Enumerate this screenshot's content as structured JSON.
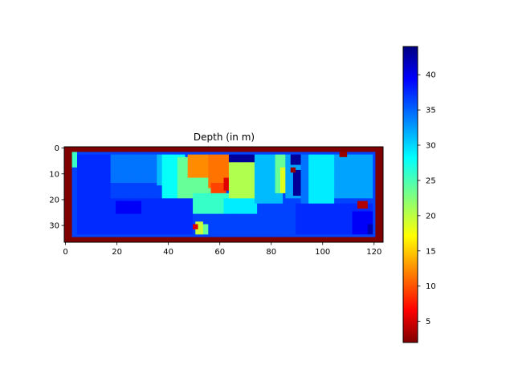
{
  "chart_data": {
    "type": "heatmap",
    "title": "Depth (in m)",
    "xlabel": "",
    "ylabel": "",
    "colormap": "jet",
    "image_size": [
      124,
      37
    ],
    "xlim": [
      -0.5,
      123.5
    ],
    "ylim": [
      36.5,
      -0.5
    ],
    "x_ticks": [
      0,
      20,
      40,
      60,
      80,
      100,
      120
    ],
    "y_ticks": [
      0,
      10,
      20,
      30
    ],
    "colorbar": {
      "range": [
        2,
        44
      ],
      "ticks": [
        5,
        10,
        15,
        20,
        25,
        30,
        35,
        40
      ]
    },
    "border_value": 44,
    "base_value": 10,
    "regions": [
      {
        "shape": "rect",
        "x": [
          3,
          5
        ],
        "y": [
          2,
          8
        ],
        "value": 20
      },
      {
        "shape": "rect",
        "x": [
          5,
          18
        ],
        "y": [
          3,
          20
        ],
        "value": 9
      },
      {
        "shape": "rect",
        "x": [
          18,
          36
        ],
        "y": [
          3,
          14
        ],
        "value": 12
      },
      {
        "shape": "rect",
        "x": [
          36,
          45
        ],
        "y": [
          3,
          15
        ],
        "value": 15
      },
      {
        "shape": "rect",
        "x": [
          38,
          47
        ],
        "y": [
          3,
          20
        ],
        "value": 18
      },
      {
        "shape": "rect",
        "x": [
          44,
          58
        ],
        "y": [
          4,
          20
        ],
        "value": 22
      },
      {
        "shape": "rect",
        "x": [
          48,
          58
        ],
        "y": [
          3,
          12
        ],
        "value": 33
      },
      {
        "shape": "rect",
        "x": [
          56,
          64
        ],
        "y": [
          3,
          16
        ],
        "value": 34
      },
      {
        "shape": "rect",
        "x": [
          57,
          63
        ],
        "y": [
          14,
          19
        ],
        "value": 36
      },
      {
        "shape": "rect",
        "x": [
          62,
          67
        ],
        "y": [
          12,
          17
        ],
        "value": 40
      },
      {
        "shape": "rect",
        "x": [
          64,
          74
        ],
        "y": [
          6,
          20
        ],
        "value": 25
      },
      {
        "shape": "rect",
        "x": [
          50,
          64
        ],
        "y": [
          18,
          26
        ],
        "value": 20
      },
      {
        "shape": "rect",
        "x": [
          62,
          75
        ],
        "y": [
          20,
          26
        ],
        "value": 17
      },
      {
        "shape": "rect",
        "x": [
          64,
          74
        ],
        "y": [
          3,
          6
        ],
        "value": 3
      },
      {
        "shape": "rect",
        "x": [
          74,
          85
        ],
        "y": [
          3,
          22
        ],
        "value": 15
      },
      {
        "shape": "rect",
        "x": [
          82,
          87
        ],
        "y": [
          3,
          18
        ],
        "value": 22
      },
      {
        "shape": "rect",
        "x": [
          84,
          88
        ],
        "y": [
          8,
          18
        ],
        "value": 27
      },
      {
        "shape": "rect",
        "x": [
          86,
          92
        ],
        "y": [
          3,
          20
        ],
        "value": 14
      },
      {
        "shape": "rect",
        "x": [
          88,
          92
        ],
        "y": [
          3,
          7
        ],
        "value": 3
      },
      {
        "shape": "rect",
        "x": [
          89,
          92
        ],
        "y": [
          9,
          19
        ],
        "value": 3
      },
      {
        "shape": "rect",
        "x": [
          88,
          90
        ],
        "y": [
          8,
          10
        ],
        "value": 43
      },
      {
        "shape": "rect",
        "x": [
          92,
          95
        ],
        "y": [
          3,
          22
        ],
        "value": 12
      },
      {
        "shape": "rect",
        "x": [
          95,
          105
        ],
        "y": [
          3,
          26
        ],
        "value": 17
      },
      {
        "shape": "rect",
        "x": [
          105,
          120
        ],
        "y": [
          3,
          20
        ],
        "value": 14
      },
      {
        "shape": "rect",
        "x": [
          107,
          110
        ],
        "y": [
          2,
          4
        ],
        "value": 43
      },
      {
        "shape": "rect",
        "x": [
          90,
          120
        ],
        "y": [
          22,
          34
        ],
        "value": 9
      },
      {
        "shape": "rect",
        "x": [
          112,
          120
        ],
        "y": [
          25,
          34
        ],
        "value": 7
      },
      {
        "shape": "rect",
        "x": [
          114,
          118
        ],
        "y": [
          21,
          24
        ],
        "value": 42
      },
      {
        "shape": "rect",
        "x": [
          118,
          120
        ],
        "y": [
          30,
          34
        ],
        "value": 4
      },
      {
        "shape": "rect",
        "x": [
          5,
          50
        ],
        "y": [
          20,
          34
        ],
        "value": 9
      },
      {
        "shape": "rect",
        "x": [
          20,
          30
        ],
        "y": [
          21,
          26
        ],
        "value": 7
      },
      {
        "shape": "rect",
        "x": [
          50,
          90
        ],
        "y": [
          26,
          34
        ],
        "value": 10
      },
      {
        "shape": "rect",
        "x": [
          51,
          54
        ],
        "y": [
          29,
          34
        ],
        "value": 26
      },
      {
        "shape": "rect",
        "x": [
          54,
          56
        ],
        "y": [
          30,
          34
        ],
        "value": 22
      },
      {
        "shape": "rect",
        "x": [
          50,
          52
        ],
        "y": [
          30,
          32
        ],
        "value": 40
      }
    ]
  }
}
